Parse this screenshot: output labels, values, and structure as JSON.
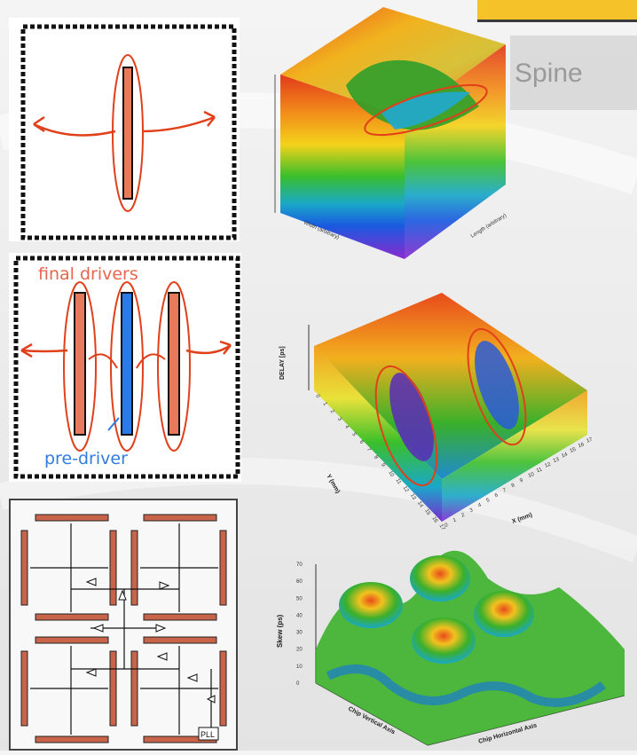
{
  "slide": {
    "title_fragment": "Spine",
    "banner_color": "#f6c22a",
    "accent_color": "#e05a2a"
  },
  "topology_diagrams": {
    "spine": {
      "name": "single-spine"
    },
    "multi_spine": {
      "final_label": "final drivers",
      "pre_label": "pre-driver"
    },
    "h_tree": {
      "pll_label": "PLL"
    }
  },
  "plots": {
    "plot1": {
      "xlabel": "Width (arbitrary)",
      "ylabel": "Length (arbitrary)"
    },
    "plot2": {
      "zlabel": "DELAY [ps]",
      "ylabel": "Y (mm)",
      "xlabel": "X (mm)",
      "x_ticks": [
        "0",
        "1",
        "2",
        "3",
        "4",
        "5",
        "6",
        "7",
        "8",
        "9",
        "10",
        "11",
        "12",
        "13",
        "14",
        "15",
        "16",
        "17"
      ],
      "y_ticks": [
        "0",
        "1",
        "2",
        "3",
        "4",
        "5",
        "6",
        "7",
        "8",
        "9",
        "10",
        "11",
        "12",
        "13",
        "14",
        "15",
        "16",
        "17"
      ]
    },
    "plot3": {
      "zlabel": "Skew (ps)",
      "z_ticks": [
        "0",
        "10",
        "20",
        "30",
        "40",
        "50",
        "60",
        "70"
      ],
      "xlabel": "Chip Horizontal Axis",
      "ylabel": "Chip Vertical Axis"
    }
  }
}
